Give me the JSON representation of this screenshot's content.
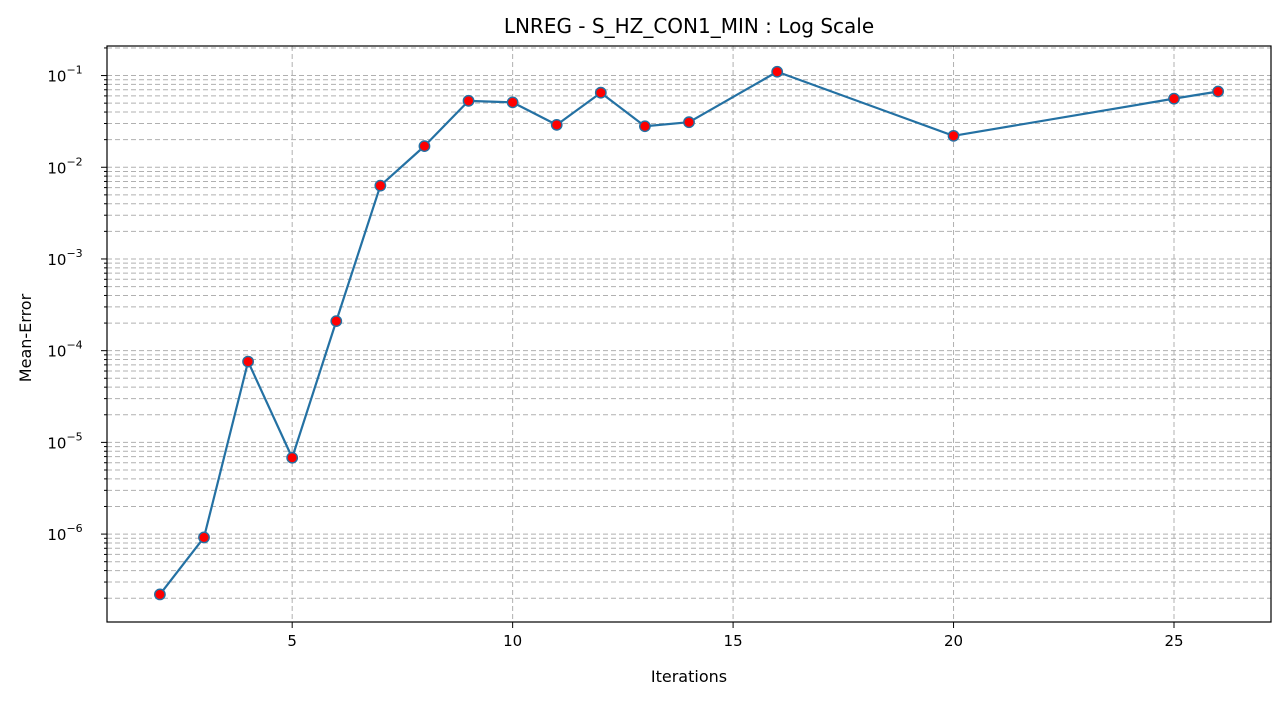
{
  "chart_data": {
    "type": "line",
    "title": "LNREG - S_HZ_CON1_MIN : Log Scale",
    "xlabel": "Iterations",
    "ylabel": "Mean-Error",
    "yscale": "log",
    "xlim": [
      0.8,
      27.2
    ],
    "ylim": [
      1.1e-07,
      0.21
    ],
    "xticks": [
      5,
      10,
      15,
      20,
      25
    ],
    "yticks": [
      {
        "base": "10",
        "exp": "−6",
        "value": 1e-06
      },
      {
        "base": "10",
        "exp": "−5",
        "value": 1e-05
      },
      {
        "base": "10",
        "exp": "−4",
        "value": 0.0001
      },
      {
        "base": "10",
        "exp": "−3",
        "value": 0.001
      },
      {
        "base": "10",
        "exp": "−2",
        "value": 0.01
      },
      {
        "base": "10",
        "exp": "−1",
        "value": 0.1
      }
    ],
    "grid": true,
    "series": [
      {
        "line_color": "#2471a3",
        "marker_color": "#ff0000",
        "x": [
          2,
          3,
          4,
          5,
          6,
          7,
          8,
          9,
          10,
          11,
          12,
          13,
          14,
          16,
          20,
          25,
          26
        ],
        "y": [
          2.2e-07,
          9.2e-07,
          7.6e-05,
          6.8e-06,
          0.00021,
          0.0063,
          0.017,
          0.053,
          0.051,
          0.029,
          0.065,
          0.028,
          0.031,
          0.11,
          0.022,
          0.056,
          0.067
        ]
      }
    ]
  }
}
